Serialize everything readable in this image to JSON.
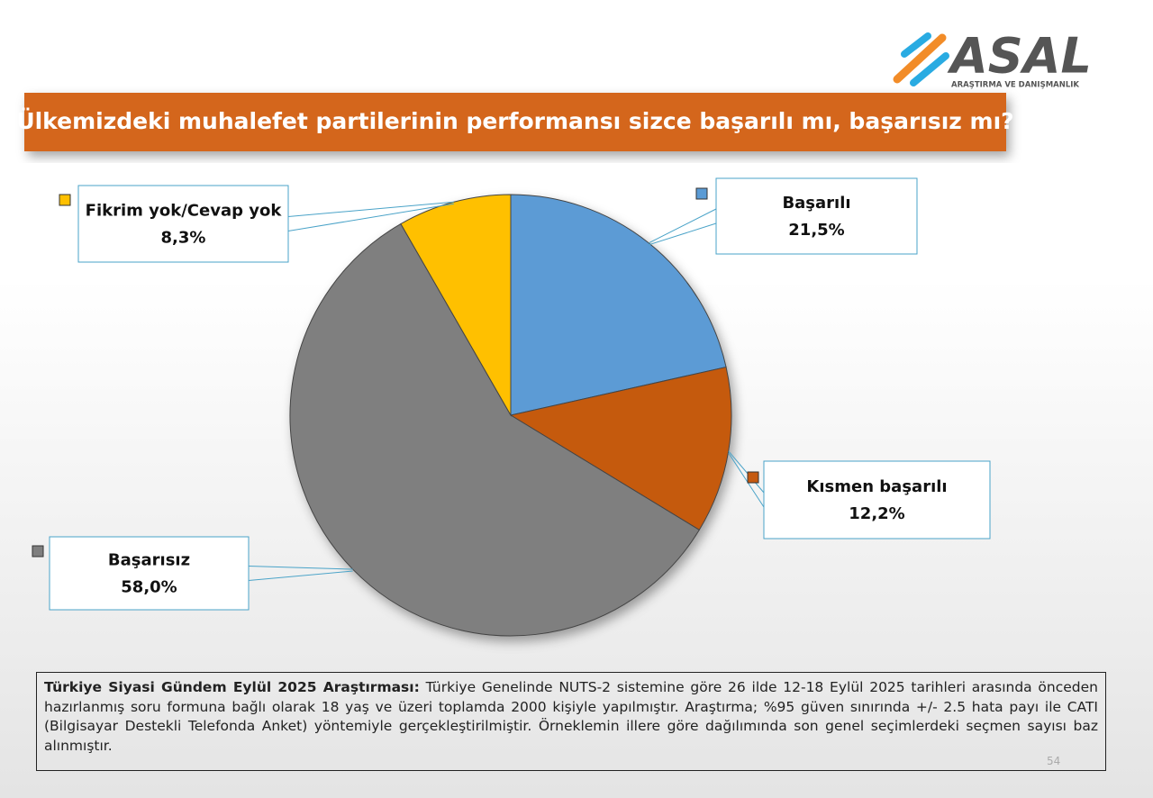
{
  "logo": {
    "name": "ASAL",
    "tagline": "ARAŞTIRMA VE DANIŞMANLIK"
  },
  "chart_data": {
    "type": "pie",
    "title": "Ülkemizdeki muhalefet partilerinin performansı sizce başarılı mı, başarısız mı?",
    "categories": [
      "Başarılı",
      "Kısmen başarılı",
      "Başarısız",
      "Fikrim yok/Cevap yok"
    ],
    "values": [
      21.5,
      12.2,
      58.0,
      8.3
    ],
    "value_labels": [
      "21,5%",
      "12,2%",
      "58,0%",
      "8,3%"
    ],
    "colors": [
      "#5b9bd5",
      "#c55a11",
      "#7f7f7f",
      "#ffc000"
    ]
  },
  "footnote": {
    "bold": "Türkiye Siyasi Gündem Eylül 2025 Araştırması:",
    "text": "Türkiye Genelinde NUTS-2 sistemine göre 26 ilde 12-18 Eylül 2025 tarihleri arasında önceden hazırlanmış soru formuna bağlı olarak 18 yaş ve üzeri toplamda 2000 kişiyle yapılmıştır. Araştırma; %95 güven sınırında +/- 2.5 hata payı ile CATI (Bilgisayar Destekli Telefonda Anket) yöntemiyle gerçekleştirilmiştir. Örneklemin illere göre dağılımında son genel seçimlerdeki seçmen sayısı baz alınmıştır."
  },
  "page_number": 54
}
